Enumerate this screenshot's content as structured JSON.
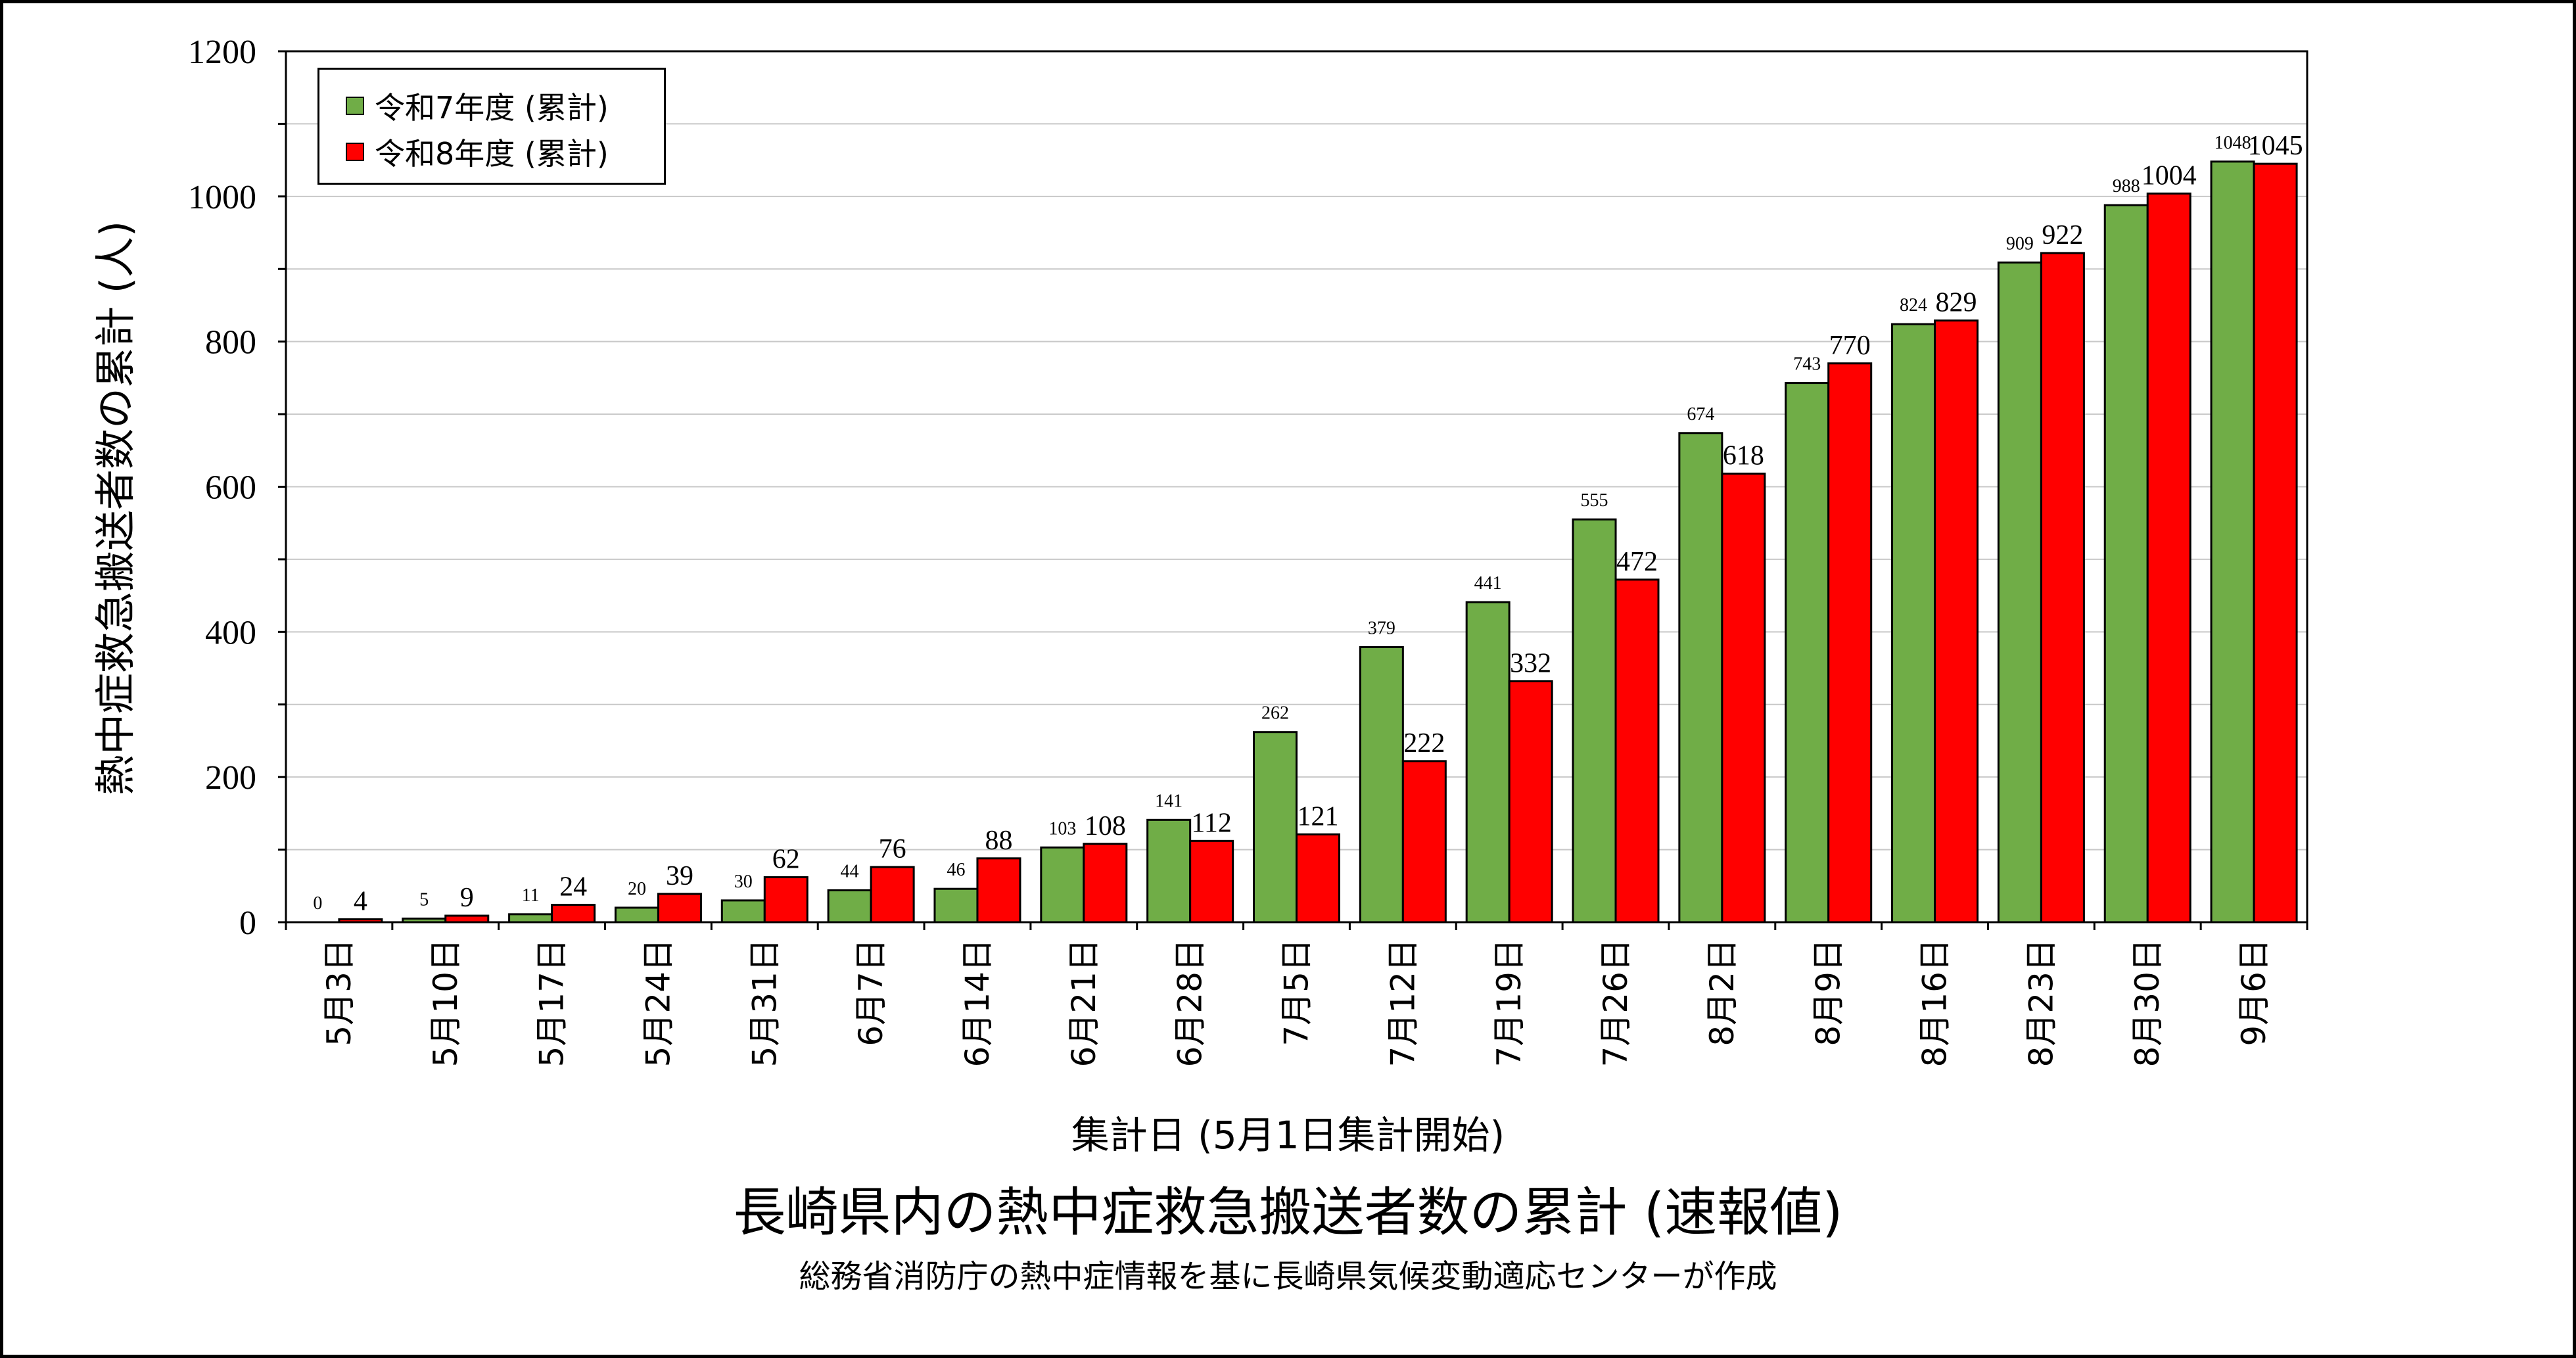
{
  "chart_data": {
    "type": "bar",
    "title": "長崎県内の熱中症救急搬送者数の累計 (速報値)",
    "subtitle": "総務省消防庁の熱中症情報を基に長崎県気候変動適応センターが作成",
    "xlabel": "集計日 (5月1日集計開始)",
    "ylabel": "熱中症救急搬送者数の累計 (人)",
    "ylim": [
      0,
      1200
    ],
    "yticks": [
      "0",
      "200",
      "400",
      "600",
      "800",
      "1000",
      "1200"
    ],
    "grid": true,
    "legend_position": "top-left",
    "categories": [
      "5月3日",
      "5月10日",
      "5月17日",
      "5月24日",
      "5月31日",
      "6月7日",
      "6月14日",
      "6月21日",
      "6月28日",
      "7月5日",
      "7月12日",
      "7月19日",
      "7月26日",
      "8月2日",
      "8月9日",
      "8月16日",
      "8月23日",
      "8月30日",
      "9月6日"
    ],
    "series": [
      {
        "name": "令和7年度 (累計)",
        "color": "#70ad47",
        "values": [
          0,
          5,
          11,
          20,
          30,
          44,
          46,
          103,
          141,
          262,
          379,
          441,
          555,
          674,
          743,
          824,
          909,
          988,
          1048
        ]
      },
      {
        "name": "令和8年度 (累計)",
        "color": "#ff0000",
        "values": [
          4,
          9,
          24,
          39,
          62,
          76,
          88,
          108,
          112,
          121,
          222,
          332,
          472,
          618,
          770,
          829,
          922,
          1004,
          1045
        ]
      }
    ]
  }
}
